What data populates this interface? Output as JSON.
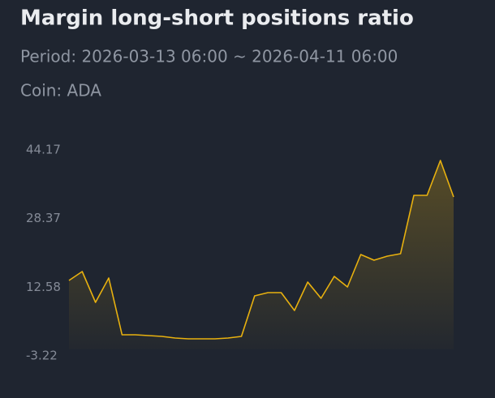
{
  "chart_data": {
    "type": "area",
    "title": "Margin long-short positions ratio",
    "subtitle": "Period: 2026-03-13 06:00 ~ 2026-04-11 06:00",
    "coin": "Coin: ADA",
    "values": [
      14.13,
      16.18,
      9.1,
      14.69,
      1.63,
      1.63,
      1.45,
      1.26,
      0.89,
      0.7,
      0.7,
      0.7,
      0.89,
      1.26,
      10.59,
      11.33,
      11.33,
      7.23,
      13.76,
      10.03,
      15.07,
      12.64,
      20.1,
      18.8,
      19.73,
      20.29,
      33.72,
      33.72,
      41.74,
      33.35
    ],
    "color": "#e8b10f",
    "ylim": [
      -3.22,
      44.17
    ],
    "yticks": [
      44.17,
      28.37,
      12.58,
      -3.22
    ],
    "grid": false
  }
}
